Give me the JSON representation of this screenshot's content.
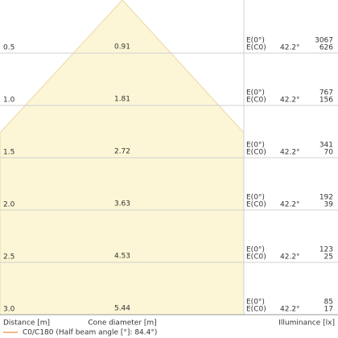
{
  "rows": [
    {
      "distance": "0.5",
      "diameter": "0.91",
      "e0_label": "E(0°)",
      "ec0_label": "E(C0)",
      "angle": "42.2°",
      "e0": "3067",
      "ec0": "626"
    },
    {
      "distance": "1.0",
      "diameter": "1.81",
      "e0_label": "E(0°)",
      "ec0_label": "E(C0)",
      "angle": "42.2°",
      "e0": "767",
      "ec0": "156"
    },
    {
      "distance": "1.5",
      "diameter": "2.72",
      "e0_label": "E(0°)",
      "ec0_label": "E(C0)",
      "angle": "42.2°",
      "e0": "341",
      "ec0": "70"
    },
    {
      "distance": "2.0",
      "diameter": "3.63",
      "e0_label": "E(0°)",
      "ec0_label": "E(C0)",
      "angle": "42.2°",
      "e0": "192",
      "ec0": "39"
    },
    {
      "distance": "2.5",
      "diameter": "4.53",
      "e0_label": "E(0°)",
      "ec0_label": "E(C0)",
      "angle": "42.2°",
      "e0": "123",
      "ec0": "25"
    },
    {
      "distance": "3.0",
      "diameter": "5.44",
      "e0_label": "E(0°)",
      "ec0_label": "E(C0)",
      "angle": "42.2°",
      "e0": "85",
      "ec0": "17"
    }
  ],
  "footer": {
    "distance": "Distance [m]",
    "diameter": "Cone diameter [m]",
    "illuminance": "Illuminance [lx]"
  },
  "legend": "C0/C180 (Half beam angle [°]: 84.4°)"
}
